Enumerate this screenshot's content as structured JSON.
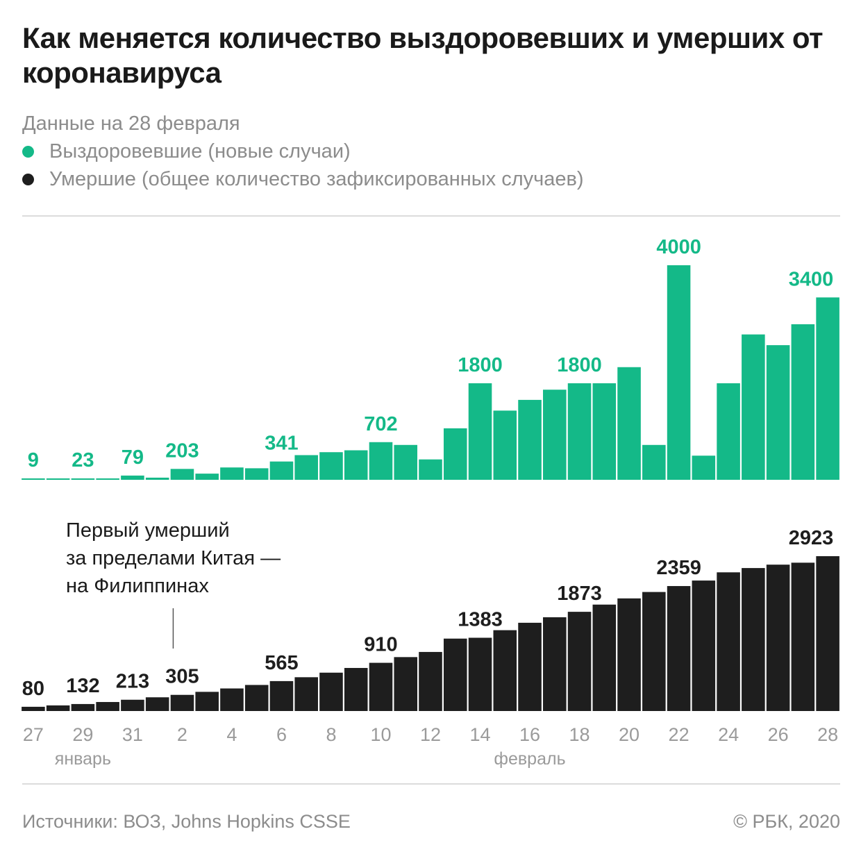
{
  "title": "Как меняется количество выздоровевших и умерших от коронавируса",
  "subtitle": "Данные на 28 февраля",
  "legend": [
    {
      "label": "Выздоровевшие (новые случаи)",
      "color": "#14b988"
    },
    {
      "label": "Умершие (общее количество зафиксированных случаев)",
      "color": "#1e1e1e"
    }
  ],
  "annotation": {
    "lines": [
      "Первый умерший",
      "за пределами Китая —",
      "на Филиппинах"
    ],
    "date_index": 6
  },
  "footer": {
    "source": "Источники: ВОЗ, Johns Hopkins CSSE",
    "copyright": "© РБК, 2020"
  },
  "chart_data": {
    "type": "bar",
    "x_dates": [
      "27",
      "28",
      "29",
      "30",
      "31",
      "1",
      "2",
      "3",
      "4",
      "5",
      "6",
      "7",
      "8",
      "9",
      "10",
      "11",
      "12",
      "13",
      "14",
      "15",
      "16",
      "17",
      "18",
      "19",
      "20",
      "21",
      "22",
      "23",
      "24",
      "25",
      "26",
      "27",
      "28"
    ],
    "tick_labels": [
      "27",
      "29",
      "31",
      "2",
      "4",
      "6",
      "8",
      "10",
      "12",
      "14",
      "16",
      "18",
      "20",
      "22",
      "24",
      "26",
      "28"
    ],
    "month_labels": [
      {
        "label": "январь",
        "under_tick": "29"
      },
      {
        "label": "февраль",
        "under_tick": "16"
      }
    ],
    "series": [
      {
        "name": "Выздоровевшие (новые случаи)",
        "color": "#14b988",
        "values": [
          9,
          10,
          23,
          20,
          79,
          40,
          203,
          115,
          230,
          215,
          341,
          460,
          515,
          550,
          702,
          650,
          380,
          960,
          1800,
          1290,
          1490,
          1680,
          1800,
          1800,
          2100,
          650,
          4000,
          450,
          1800,
          2710,
          2510,
          2900,
          3400
        ],
        "labels": [
          {
            "index": 0,
            "text": "9"
          },
          {
            "index": 2,
            "text": "23"
          },
          {
            "index": 4,
            "text": "79"
          },
          {
            "index": 6,
            "text": "203"
          },
          {
            "index": 10,
            "text": "341"
          },
          {
            "index": 14,
            "text": "702"
          },
          {
            "index": 18,
            "text": "1800"
          },
          {
            "index": 22,
            "text": "1800"
          },
          {
            "index": 26,
            "text": "4000"
          },
          {
            "index": 32,
            "text": "3400"
          }
        ]
      },
      {
        "name": "Умершие (общее количество зафиксированных случаев)",
        "color": "#1e1e1e",
        "values": [
          80,
          106,
          132,
          170,
          213,
          259,
          305,
          362,
          426,
          492,
          565,
          638,
          724,
          813,
          910,
          1018,
          1115,
          1367,
          1383,
          1526,
          1666,
          1770,
          1873,
          2009,
          2126,
          2247,
          2359,
          2463,
          2618,
          2699,
          2763,
          2800,
          2923
        ],
        "labels": [
          {
            "index": 0,
            "text": "80"
          },
          {
            "index": 2,
            "text": "132"
          },
          {
            "index": 4,
            "text": "213"
          },
          {
            "index": 6,
            "text": "305"
          },
          {
            "index": 10,
            "text": "565"
          },
          {
            "index": 14,
            "text": "910"
          },
          {
            "index": 18,
            "text": "1383"
          },
          {
            "index": 22,
            "text": "1873"
          },
          {
            "index": 26,
            "text": "2359"
          },
          {
            "index": 32,
            "text": "2923"
          }
        ]
      }
    ]
  }
}
